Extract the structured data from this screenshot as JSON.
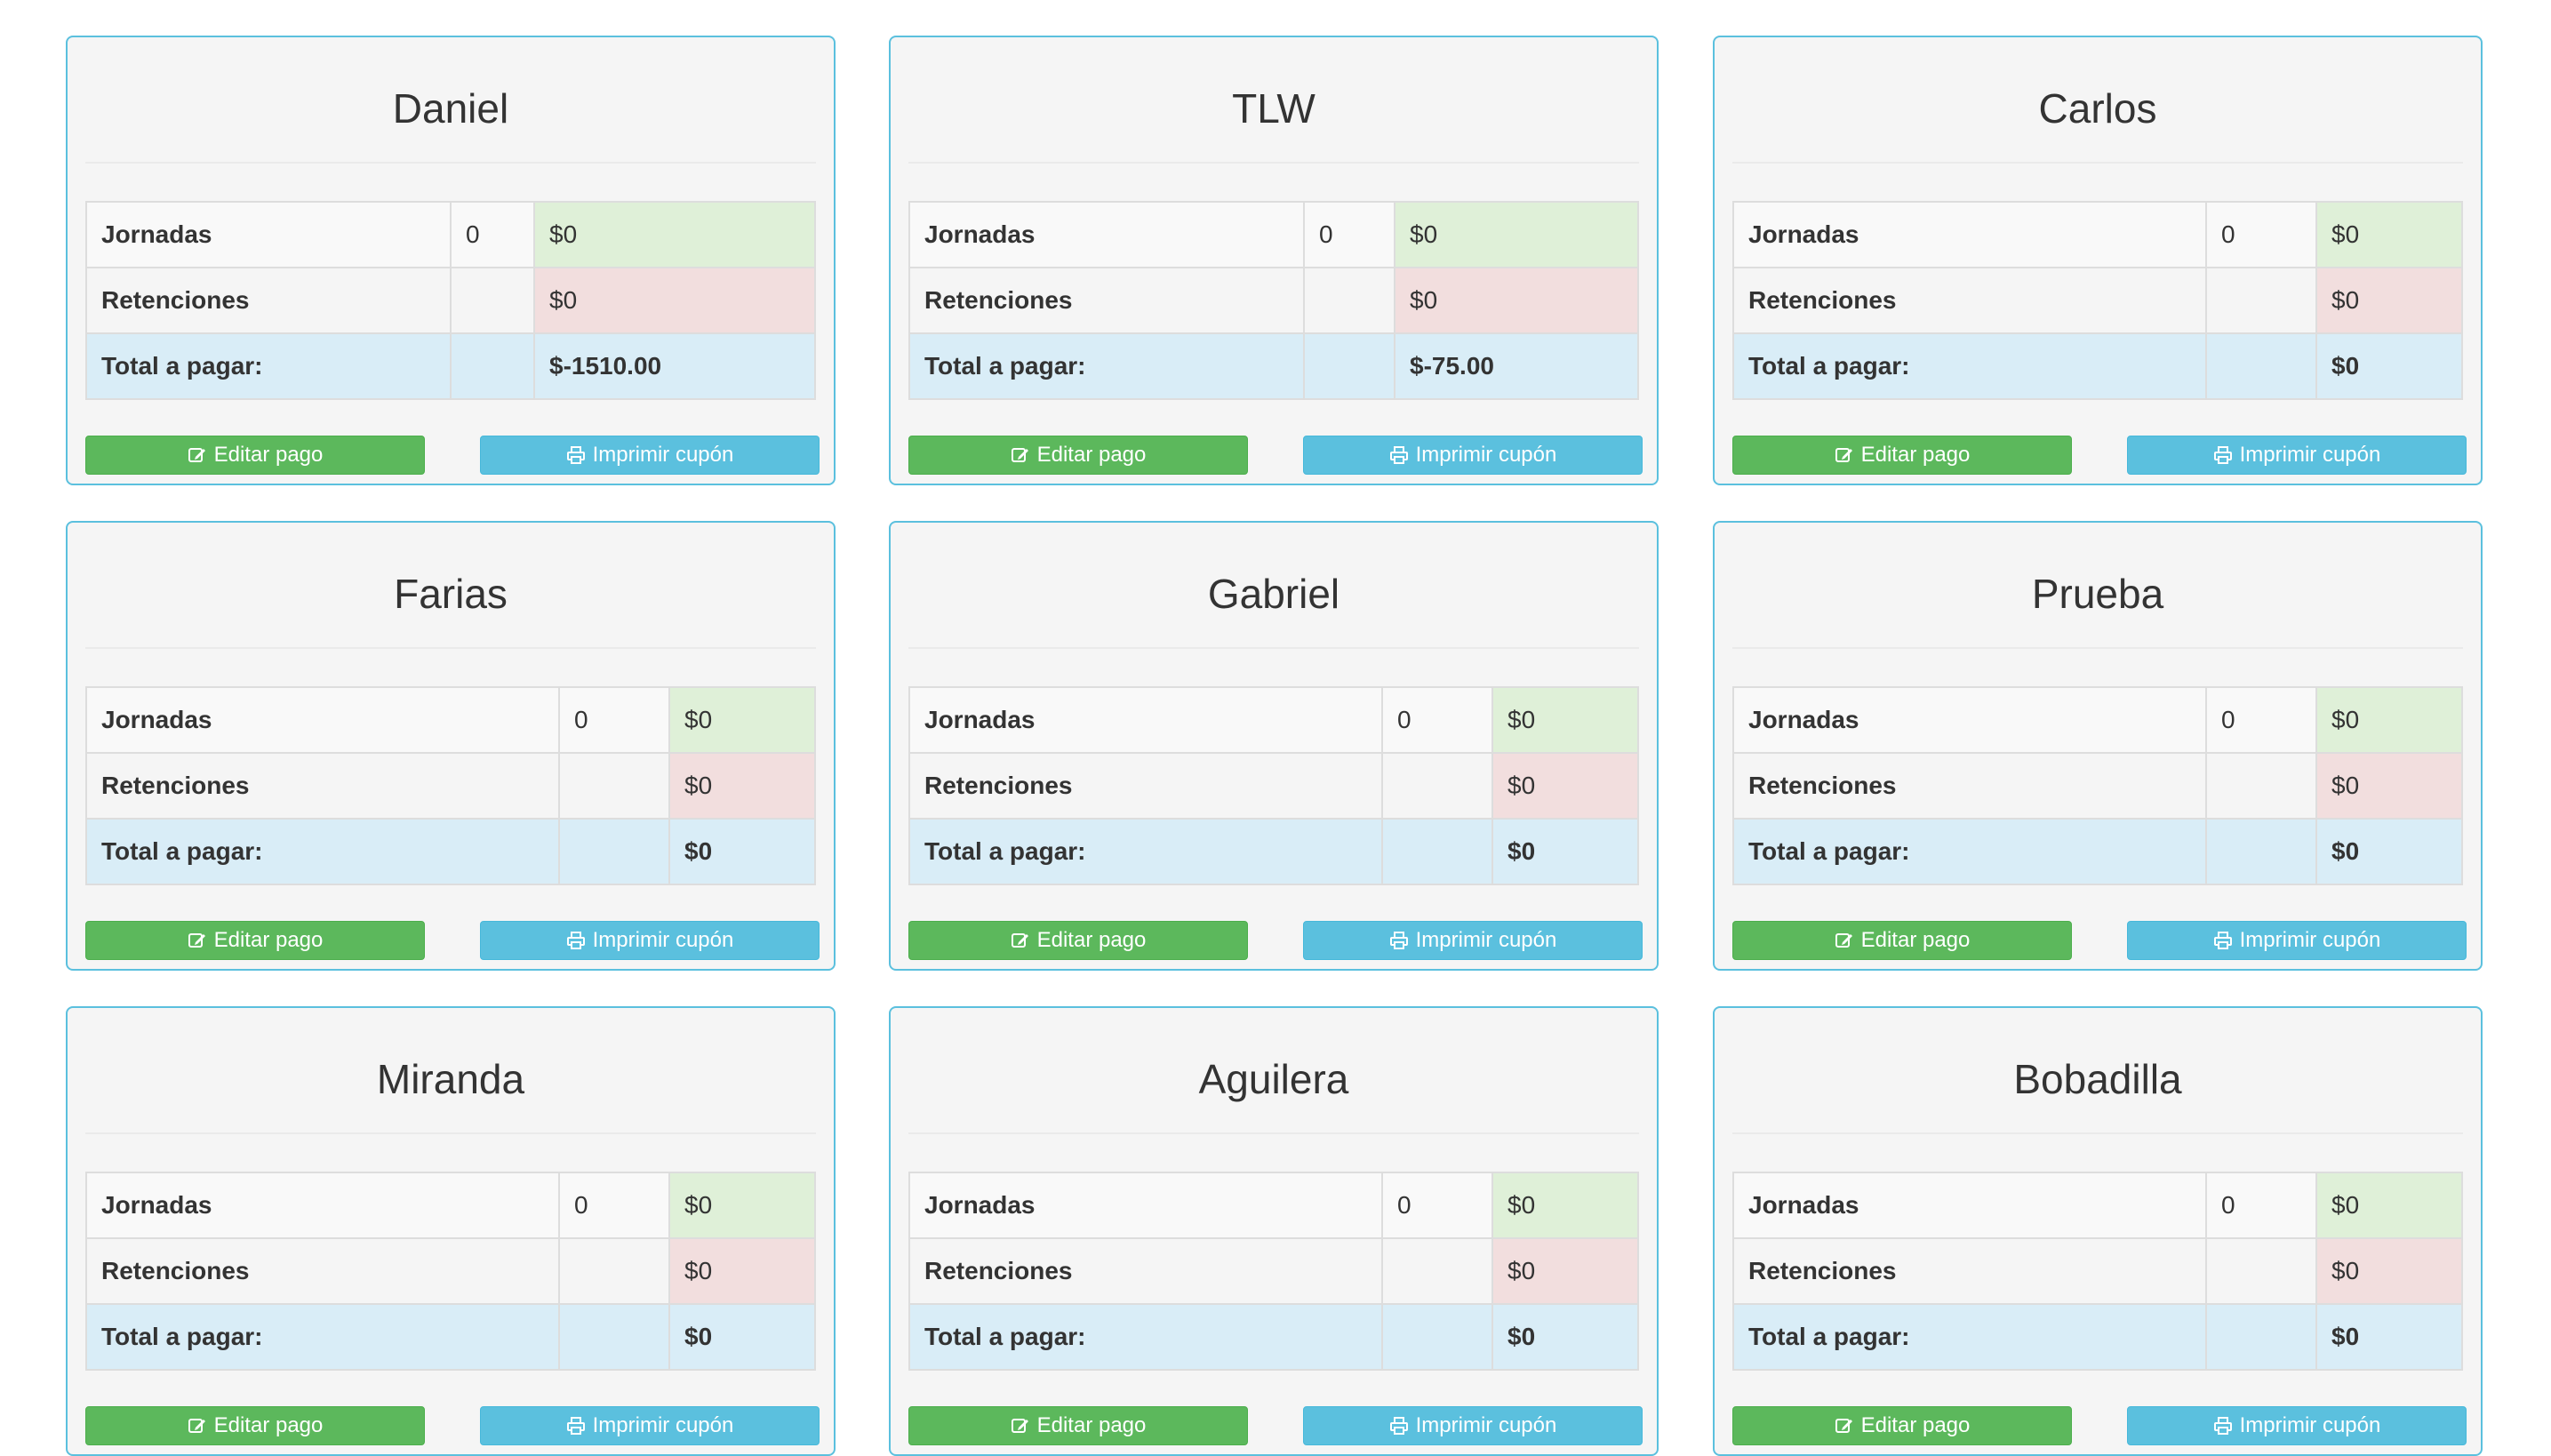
{
  "labels": {
    "jornadas": "Jornadas",
    "retenciones": "Retenciones",
    "total": "Total a pagar:",
    "edit_button": "Editar pago",
    "print_button": "Imprimir cupón"
  },
  "icons": {
    "edit": "edit-icon",
    "print": "print-icon"
  },
  "colors": {
    "card_border": "#5bc0de",
    "edit_button": "#5cb85c",
    "print_button": "#5bc0de",
    "jornadas_amount_bg": "#dff0d8",
    "retenciones_amount_bg": "#f2dede",
    "total_row_bg": "#d9edf7"
  },
  "cards": [
    {
      "name": "Daniel",
      "jornadas_count": "0",
      "jornadas_amount": "$0",
      "retenciones_count": "",
      "retenciones_amount": "$0",
      "total": "$-1510.00"
    },
    {
      "name": "TLW",
      "jornadas_count": "0",
      "jornadas_amount": "$0",
      "retenciones_count": "",
      "retenciones_amount": "$0",
      "total": "$-75.00"
    },
    {
      "name": "Carlos",
      "jornadas_count": "0",
      "jornadas_amount": "$0",
      "retenciones_count": "",
      "retenciones_amount": "$0",
      "total": "$0"
    },
    {
      "name": "Farias",
      "jornadas_count": "0",
      "jornadas_amount": "$0",
      "retenciones_count": "",
      "retenciones_amount": "$0",
      "total": "$0"
    },
    {
      "name": "Gabriel",
      "jornadas_count": "0",
      "jornadas_amount": "$0",
      "retenciones_count": "",
      "retenciones_amount": "$0",
      "total": "$0"
    },
    {
      "name": "Prueba",
      "jornadas_count": "0",
      "jornadas_amount": "$0",
      "retenciones_count": "",
      "retenciones_amount": "$0",
      "total": "$0"
    },
    {
      "name": "Miranda",
      "jornadas_count": "0",
      "jornadas_amount": "$0",
      "retenciones_count": "",
      "retenciones_amount": "$0",
      "total": "$0"
    },
    {
      "name": "Aguilera",
      "jornadas_count": "0",
      "jornadas_amount": "$0",
      "retenciones_count": "",
      "retenciones_amount": "$0",
      "total": "$0"
    },
    {
      "name": "Bobadilla",
      "jornadas_count": "0",
      "jornadas_amount": "$0",
      "retenciones_count": "",
      "retenciones_amount": "$0",
      "total": "$0"
    }
  ]
}
